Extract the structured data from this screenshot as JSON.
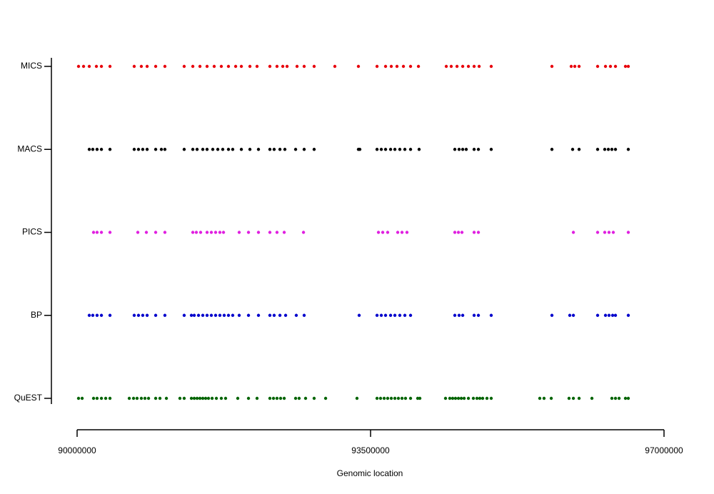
{
  "chart_data": {
    "type": "strip",
    "x_label": "Genomic location",
    "categories": [
      "MICS",
      "MACS",
      "PICS",
      "BP",
      "QuEST"
    ],
    "xlim": [
      90000000,
      97000000
    ],
    "xticks": [
      90000000,
      93500000,
      97000000
    ],
    "series": [
      {
        "color": "#e8000b",
        "x": [
          90017000,
          90077000,
          90145000,
          90230000,
          90290000,
          90392000,
          90681000,
          90766000,
          90835000,
          90937000,
          91047000,
          91277000,
          91380000,
          91465000,
          91550000,
          91635000,
          91720000,
          91805000,
          91891000,
          91959000,
          92061000,
          92146000,
          92299000,
          92384000,
          92453000,
          92504000,
          92623000,
          92708000,
          92827000,
          93074000,
          93355000,
          93577000,
          93679000,
          93747000,
          93815000,
          93892000,
          93977000,
          94071000,
          94403000,
          94462000,
          94531000,
          94599000,
          94667000,
          94735000,
          94795000,
          94939000,
          95663000,
          95893000,
          95936000,
          95987000,
          96208000,
          96302000,
          96361000,
          96421000,
          96540000,
          96574000
        ]
      },
      {
        "color": "#000000",
        "x": [
          90145000,
          90187000,
          90238000,
          90290000,
          90392000,
          90681000,
          90732000,
          90783000,
          90835000,
          90937000,
          91005000,
          91047000,
          91277000,
          91380000,
          91431000,
          91499000,
          91550000,
          91618000,
          91678000,
          91737000,
          91805000,
          91856000,
          91959000,
          92061000,
          92163000,
          92299000,
          92350000,
          92419000,
          92478000,
          92606000,
          92708000,
          92827000,
          93355000,
          93372000,
          93577000,
          93628000,
          93679000,
          93739000,
          93790000,
          93849000,
          93909000,
          93977000,
          94079000,
          94505000,
          94556000,
          94599000,
          94641000,
          94735000,
          94786000,
          94939000,
          95663000,
          95910000,
          95987000,
          96208000,
          96293000,
          96336000,
          96378000,
          96421000,
          96574000
        ]
      },
      {
        "color": "#e020e0",
        "x": [
          90196000,
          90238000,
          90290000,
          90392000,
          90724000,
          90826000,
          90937000,
          91047000,
          91380000,
          91422000,
          91473000,
          91550000,
          91601000,
          91652000,
          91703000,
          91746000,
          91933000,
          92044000,
          92163000,
          92299000,
          92384000,
          92470000,
          92700000,
          93594000,
          93645000,
          93704000,
          93824000,
          93875000,
          93934000,
          94505000,
          94548000,
          94590000,
          94735000,
          94786000,
          95919000,
          96208000,
          96293000,
          96344000,
          96395000,
          96574000
        ]
      },
      {
        "color": "#0000cc",
        "x": [
          90145000,
          90187000,
          90238000,
          90290000,
          90392000,
          90681000,
          90732000,
          90783000,
          90835000,
          90937000,
          91047000,
          91277000,
          91363000,
          91397000,
          91448000,
          91499000,
          91550000,
          91601000,
          91652000,
          91703000,
          91754000,
          91805000,
          91856000,
          91933000,
          92044000,
          92163000,
          92299000,
          92350000,
          92419000,
          92487000,
          92614000,
          92708000,
          93364000,
          93577000,
          93628000,
          93679000,
          93739000,
          93790000,
          93849000,
          93909000,
          93977000,
          94505000,
          94556000,
          94599000,
          94735000,
          94786000,
          94939000,
          95663000,
          95876000,
          95919000,
          96208000,
          96302000,
          96344000,
          96387000,
          96421000,
          96574000
        ]
      },
      {
        "color": "#006400",
        "x": [
          90017000,
          90060000,
          90196000,
          90238000,
          90290000,
          90341000,
          90392000,
          90622000,
          90673000,
          90715000,
          90766000,
          90809000,
          90852000,
          90937000,
          90988000,
          91065000,
          91226000,
          91277000,
          91363000,
          91397000,
          91431000,
          91465000,
          91499000,
          91533000,
          91567000,
          91610000,
          91661000,
          91720000,
          91771000,
          91916000,
          92044000,
          92146000,
          92299000,
          92342000,
          92384000,
          92427000,
          92470000,
          92606000,
          92648000,
          92725000,
          92827000,
          92964000,
          93338000,
          93577000,
          93619000,
          93662000,
          93704000,
          93747000,
          93790000,
          93832000,
          93875000,
          93917000,
          93977000,
          94062000,
          94088000,
          94394000,
          94445000,
          94479000,
          94513000,
          94548000,
          94582000,
          94616000,
          94667000,
          94726000,
          94769000,
          94803000,
          94837000,
          94888000,
          94939000,
          95518000,
          95569000,
          95655000,
          95867000,
          95919000,
          95987000,
          96140000,
          96378000,
          96421000,
          96464000,
          96540000,
          96574000
        ]
      }
    ]
  }
}
